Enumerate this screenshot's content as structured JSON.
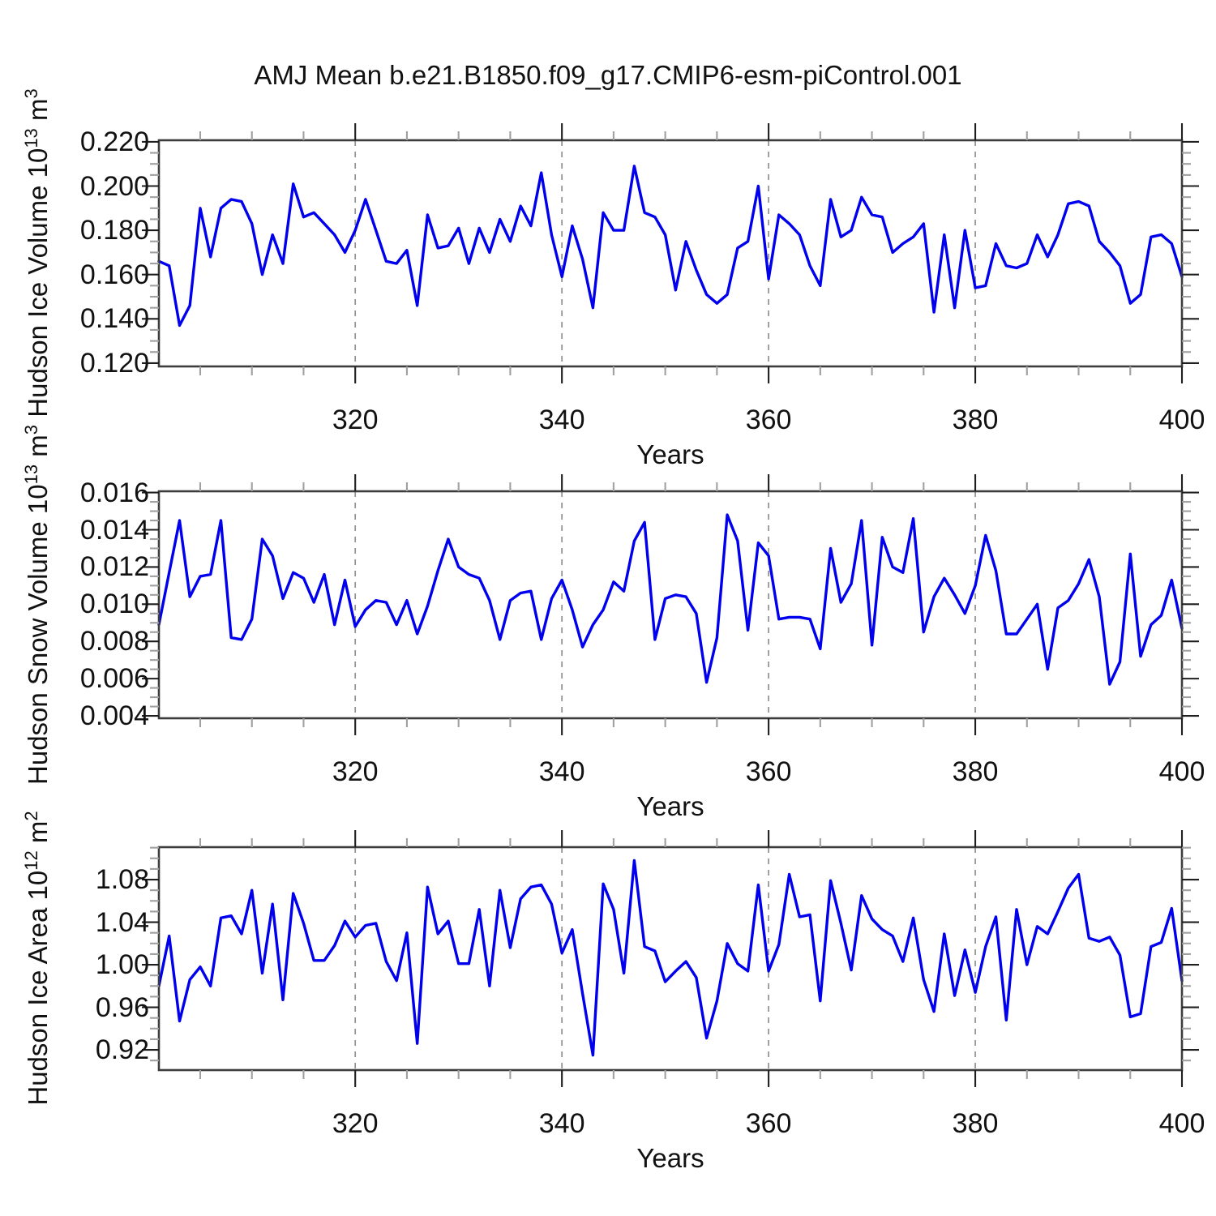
{
  "title": "AMJ Mean b.e21.B1850.f09_g17.CMIP6-esm-piControl.001",
  "colors": {
    "line": "#0000ee",
    "frame": "#3d3d3d",
    "major_tick": "#1f1f1f",
    "minor_tick": "#a0a0a0",
    "grid": "#909090",
    "text": "#000000",
    "background": "#ffffff"
  },
  "x_axis": {
    "label": "Years",
    "lim": [
      301,
      400
    ],
    "ticks": [
      320,
      340,
      360,
      380,
      400
    ],
    "tick_labels": [
      "320",
      "340",
      "360",
      "380",
      "400"
    ],
    "minor_step": 5,
    "grid_years": [
      320,
      340,
      360,
      380
    ],
    "years": [
      301,
      302,
      303,
      304,
      305,
      306,
      307,
      308,
      309,
      310,
      311,
      312,
      313,
      314,
      315,
      316,
      317,
      318,
      319,
      320,
      321,
      322,
      323,
      324,
      325,
      326,
      327,
      328,
      329,
      330,
      331,
      332,
      333,
      334,
      335,
      336,
      337,
      338,
      339,
      340,
      341,
      342,
      343,
      344,
      345,
      346,
      347,
      348,
      349,
      350,
      351,
      352,
      353,
      354,
      355,
      356,
      357,
      358,
      359,
      360,
      361,
      362,
      363,
      364,
      365,
      366,
      367,
      368,
      369,
      370,
      371,
      372,
      373,
      374,
      375,
      376,
      377,
      378,
      379,
      380,
      381,
      382,
      383,
      384,
      385,
      386,
      387,
      388,
      389,
      390,
      391,
      392,
      393,
      394,
      395,
      396,
      397,
      398,
      399,
      400
    ]
  },
  "chart_data": [
    {
      "type": "line",
      "name": "hudson-ice-volume",
      "ylabel_prefix": "Hudson Ice Volume 10",
      "ylabel_exp": "13",
      "ylabel_unit": " m",
      "ylabel_unit_exp": "3",
      "xlabel": "Years",
      "legend": "none",
      "grid": "x-dashed",
      "ylim": [
        0.1185,
        0.2207
      ],
      "yticks": [
        0.22,
        0.2,
        0.18,
        0.16,
        0.14,
        0.12
      ],
      "ytick_labels": [
        "0.220",
        "0.200",
        "0.180",
        "0.160",
        "0.140",
        "0.120"
      ],
      "y_minor_step": 0.005,
      "values": [
        0.166,
        0.164,
        0.137,
        0.146,
        0.19,
        0.168,
        0.19,
        0.194,
        0.193,
        0.183,
        0.16,
        0.178,
        0.165,
        0.201,
        0.186,
        0.188,
        0.183,
        0.178,
        0.17,
        0.18,
        0.194,
        0.18,
        0.166,
        0.165,
        0.171,
        0.146,
        0.187,
        0.172,
        0.173,
        0.181,
        0.165,
        0.181,
        0.17,
        0.185,
        0.175,
        0.191,
        0.182,
        0.206,
        0.178,
        0.159,
        0.182,
        0.167,
        0.145,
        0.188,
        0.18,
        0.18,
        0.209,
        0.188,
        0.186,
        0.178,
        0.153,
        0.175,
        0.162,
        0.151,
        0.147,
        0.151,
        0.172,
        0.175,
        0.2,
        0.158,
        0.187,
        0.183,
        0.178,
        0.164,
        0.155,
        0.194,
        0.177,
        0.18,
        0.195,
        0.187,
        0.186,
        0.17,
        0.174,
        0.177,
        0.183,
        0.143,
        0.178,
        0.145,
        0.18,
        0.154,
        0.155,
        0.174,
        0.164,
        0.163,
        0.165,
        0.178,
        0.168,
        0.178,
        0.192,
        0.193,
        0.191,
        0.175,
        0.17,
        0.164,
        0.147,
        0.151,
        0.177,
        0.178,
        0.174,
        0.159
      ]
    },
    {
      "type": "line",
      "name": "hudson-snow-volume",
      "ylabel_prefix": "Hudson Snow Volume 10",
      "ylabel_exp": "13",
      "ylabel_unit": " m",
      "ylabel_unit_exp": "3",
      "xlabel": "Years",
      "legend": "none",
      "grid": "x-dashed",
      "ylim": [
        0.00387,
        0.01607
      ],
      "yticks": [
        0.016,
        0.014,
        0.012,
        0.01,
        0.008,
        0.006,
        0.004
      ],
      "ytick_labels": [
        "0.016",
        "0.014",
        "0.012",
        "0.010",
        "0.008",
        "0.006",
        "0.004"
      ],
      "y_minor_step": 0.0005,
      "values": [
        0.0089,
        0.0117,
        0.0145,
        0.0104,
        0.0115,
        0.0116,
        0.0145,
        0.0082,
        0.0081,
        0.0092,
        0.0135,
        0.0126,
        0.0103,
        0.0117,
        0.0114,
        0.0101,
        0.0116,
        0.0089,
        0.0113,
        0.0088,
        0.0097,
        0.0102,
        0.0101,
        0.0089,
        0.0102,
        0.0084,
        0.0099,
        0.0118,
        0.0135,
        0.012,
        0.0116,
        0.0114,
        0.0102,
        0.0081,
        0.0102,
        0.0106,
        0.0107,
        0.0081,
        0.0103,
        0.0113,
        0.0097,
        0.0077,
        0.0089,
        0.0097,
        0.0112,
        0.0107,
        0.0134,
        0.0144,
        0.0081,
        0.0103,
        0.0105,
        0.0104,
        0.0095,
        0.0058,
        0.0082,
        0.0148,
        0.0134,
        0.0086,
        0.0133,
        0.0126,
        0.0092,
        0.0093,
        0.0093,
        0.0092,
        0.0076,
        0.013,
        0.0101,
        0.0111,
        0.0145,
        0.0078,
        0.0136,
        0.012,
        0.0117,
        0.0146,
        0.0085,
        0.0104,
        0.0114,
        0.0105,
        0.0095,
        0.011,
        0.0137,
        0.0118,
        0.0084,
        0.0084,
        0.0092,
        0.01,
        0.0065,
        0.0098,
        0.0102,
        0.0111,
        0.0124,
        0.0104,
        0.0057,
        0.0069,
        0.0127,
        0.0072,
        0.0089,
        0.0094,
        0.0113,
        0.0087
      ]
    },
    {
      "type": "line",
      "name": "hudson-ice-area",
      "ylabel_prefix": "Hudson Ice Area 10",
      "ylabel_exp": "12",
      "ylabel_unit": " m",
      "ylabel_unit_exp": "2",
      "xlabel": "Years",
      "legend": "none",
      "grid": "x-dashed",
      "ylim": [
        0.901,
        1.1105
      ],
      "yticks": [
        1.08,
        1.04,
        1.0,
        0.96,
        0.92
      ],
      "ytick_labels": [
        "1.08",
        "1.04",
        "1.00",
        "0.96",
        "0.92"
      ],
      "y_minor_step": 0.01,
      "values": [
        0.98,
        1.027,
        0.947,
        0.986,
        0.998,
        0.98,
        1.044,
        1.046,
        1.029,
        1.07,
        0.992,
        1.057,
        0.967,
        1.067,
        1.039,
        1.004,
        1.004,
        1.018,
        1.041,
        1.026,
        1.037,
        1.039,
        1.003,
        0.985,
        1.03,
        0.926,
        1.073,
        1.029,
        1.041,
        1.001,
        1.001,
        1.052,
        0.98,
        1.07,
        1.016,
        1.062,
        1.073,
        1.075,
        1.057,
        1.011,
        1.033,
        0.973,
        0.915,
        1.076,
        1.052,
        0.992,
        1.098,
        1.017,
        1.013,
        0.984,
        0.994,
        1.003,
        0.988,
        0.931,
        0.966,
        1.02,
        1.001,
        0.994,
        1.075,
        0.994,
        1.019,
        1.085,
        1.045,
        1.047,
        0.966,
        1.079,
        1.039,
        0.995,
        1.065,
        1.043,
        1.033,
        1.027,
        1.003,
        1.044,
        0.986,
        0.956,
        1.029,
        0.971,
        1.014,
        0.974,
        1.017,
        1.045,
        0.948,
        1.052,
        1.0,
        1.036,
        1.029,
        1.05,
        1.072,
        1.085,
        1.025,
        1.022,
        1.026,
        1.009,
        0.951,
        0.954,
        1.017,
        1.021,
        1.053,
        0.985
      ]
    }
  ]
}
